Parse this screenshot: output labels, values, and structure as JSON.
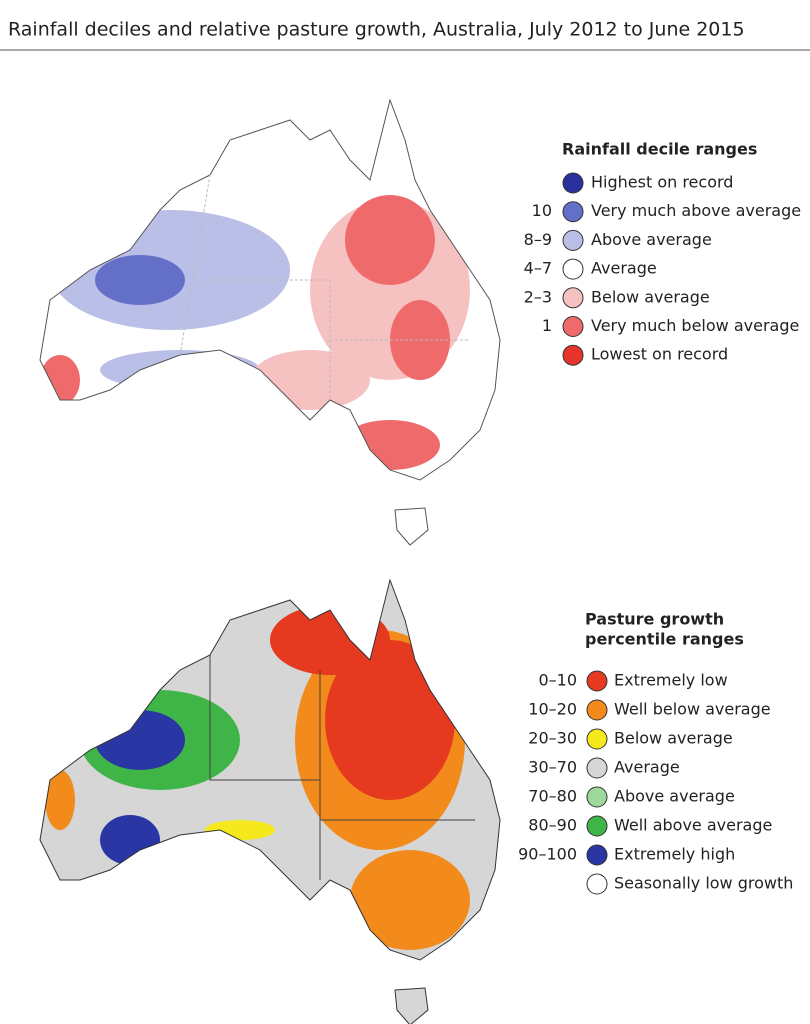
{
  "title": "Rainfall deciles and relative pasture growth, Australia, July 2012 to June 2015",
  "maps": [
    {
      "legend_title": [
        "Rainfall decile ranges"
      ],
      "legend": [
        {
          "label": "Highest on record",
          "color": "#2b2f9e"
        },
        {
          "range": "10",
          "label": "Very much above average",
          "color": "#6470c8"
        },
        {
          "range": "8–9",
          "label": "Above average",
          "color": "#b9bfe6"
        },
        {
          "range": "4–7",
          "label": "Average",
          "color": "#ffffff"
        },
        {
          "range": "2–3",
          "label": "Below average",
          "color": "#f6c1c1"
        },
        {
          "range": "1",
          "label": "Very much below average",
          "color": "#ef6a6a"
        },
        {
          "label": "Lowest on record",
          "color": "#e4342c"
        }
      ]
    },
    {
      "legend_title": [
        "Pasture growth",
        "percentile ranges"
      ],
      "legend": [
        {
          "range": "0–10",
          "label": "Extremely low",
          "color": "#e53a1f"
        },
        {
          "range": "10–20",
          "label": "Well below average",
          "color": "#f28a1c"
        },
        {
          "range": "20–30",
          "label": "Below average",
          "color": "#f5e91d"
        },
        {
          "range": "30–70",
          "label": "Average",
          "color": "#d6d6d6"
        },
        {
          "range": "70–80",
          "label": "Above average",
          "color": "#9dd99a"
        },
        {
          "range": "80–90",
          "label": "Well above average",
          "color": "#3fb548"
        },
        {
          "range": "90–100",
          "label": "Extremely high",
          "color": "#2a36a3"
        },
        {
          "label": "Seasonally low growth",
          "color": "#ffffff"
        }
      ]
    }
  ]
}
